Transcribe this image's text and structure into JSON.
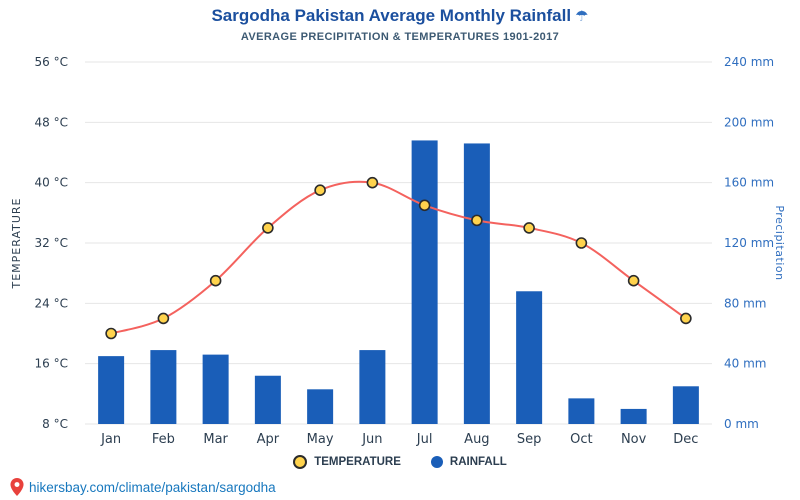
{
  "header": {
    "title": "Sargodha Pakistan Average Monthly Rainfall",
    "title_icon": "☂",
    "subtitle": "AVERAGE PRECIPITATION & TEMPERATURES 1901-2017"
  },
  "legend": {
    "items": [
      {
        "label": "TEMPERATURE",
        "marker": "line-point-icon"
      },
      {
        "label": "RAINFALL",
        "marker": "bar-dot-icon"
      }
    ]
  },
  "footer": {
    "link": "hikersbay.com/climate/pakistan/sargodha",
    "icon": "location-pin-icon"
  },
  "colors": {
    "bar": "#1a5eb8",
    "line": "#f4625e",
    "marker_fill": "#ffd34d",
    "marker_stroke": "#2b2b2b",
    "grid": "#e6e6e6",
    "axis_text_left": "#2c3e50",
    "axis_text_right": "#2f6ebf",
    "title": "#1b4f9e",
    "subtitle": "#3d5a73",
    "footer_link": "#1878be",
    "pin": "#e8413c"
  },
  "chart_data": {
    "type": "mixed",
    "title": "Sargodha Pakistan Average Monthly Rainfall",
    "subtitle": "AVERAGE PRECIPITATION & TEMPERATURES 1901-2017",
    "categories": [
      "Jan",
      "Feb",
      "Mar",
      "Apr",
      "May",
      "Jun",
      "Jul",
      "Aug",
      "Sep",
      "Oct",
      "Nov",
      "Dec"
    ],
    "series": [
      {
        "name": "RAINFALL",
        "type": "bar",
        "unit": "mm",
        "values": [
          45,
          49,
          46,
          32,
          23,
          49,
          188,
          186,
          88,
          17,
          10,
          25
        ]
      },
      {
        "name": "TEMPERATURE",
        "type": "line",
        "unit": "°C",
        "values": [
          20,
          22,
          27,
          34,
          39,
          40,
          37,
          35,
          34,
          32,
          27,
          22
        ]
      }
    ],
    "left_axis": {
      "label": "TEMPERATURE",
      "min": 8,
      "max": 56,
      "step": 8,
      "ticks": [
        "8 °C",
        "16 °C",
        "24 °C",
        "32 °C",
        "40 °C",
        "48 °C",
        "56 °C"
      ]
    },
    "right_axis": {
      "label": "Precipitation",
      "min": 0,
      "max": 240,
      "step": 40,
      "ticks": [
        "0 mm",
        "40 mm",
        "80 mm",
        "120 mm",
        "160 mm",
        "200 mm",
        "240 mm"
      ]
    },
    "grid": true,
    "legend_position": "bottom"
  }
}
